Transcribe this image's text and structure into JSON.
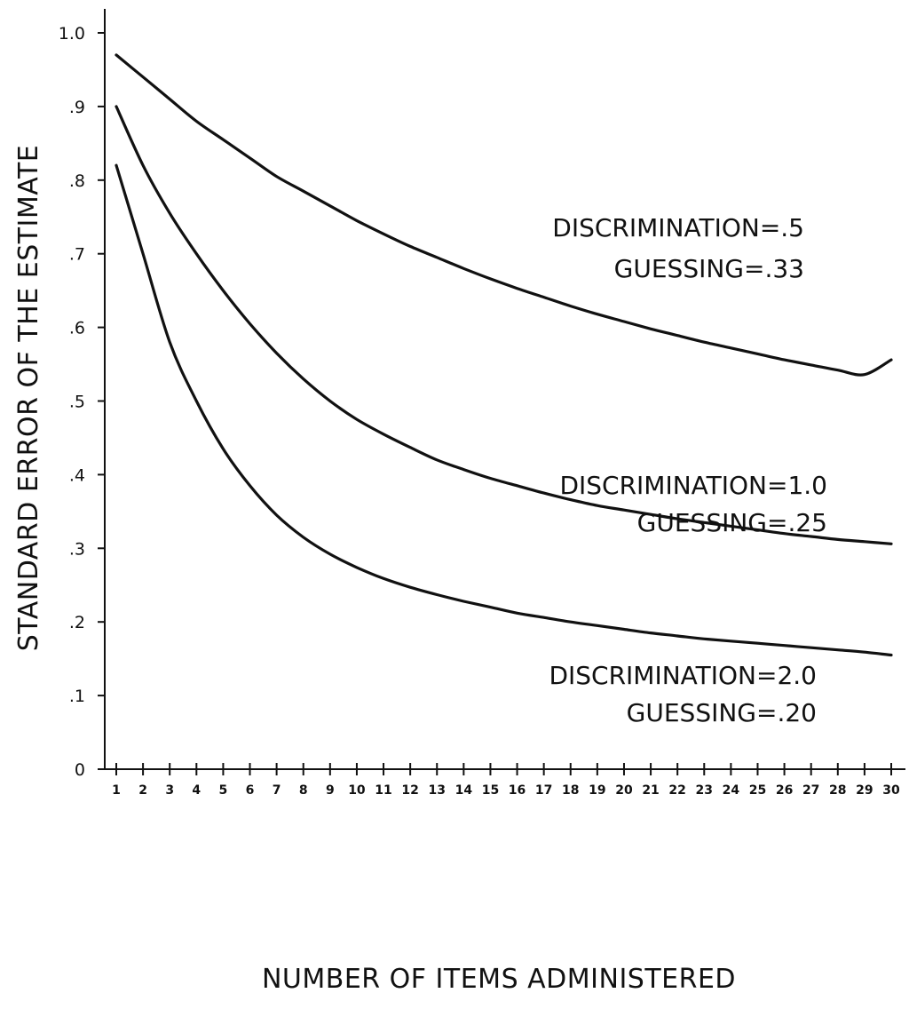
{
  "chart_data": {
    "type": "line",
    "title": "",
    "xlabel": "NUMBER OF ITEMS ADMINISTERED",
    "ylabel": "STANDARD ERROR OF THE ESTIMATE",
    "xlim": [
      1,
      30
    ],
    "ylim": [
      0,
      1.0
    ],
    "grid": false,
    "x_ticks": [
      1,
      2,
      3,
      4,
      5,
      6,
      7,
      8,
      9,
      10,
      11,
      12,
      13,
      14,
      15,
      16,
      17,
      18,
      19,
      20,
      21,
      22,
      23,
      24,
      25,
      26,
      27,
      28,
      29,
      30
    ],
    "x_tick_labels": [
      "1",
      "2",
      "3",
      "4",
      "5",
      "6",
      "7",
      "8",
      "9",
      "10",
      "11",
      "12",
      "13",
      "14",
      "15",
      "16",
      "17",
      "18",
      "19",
      "20",
      "21",
      "22",
      "23",
      "24",
      "25",
      "26",
      "27",
      "28",
      "29",
      "30"
    ],
    "y_ticks": [
      0,
      0.1,
      0.2,
      0.3,
      0.4,
      0.5,
      0.6,
      0.7,
      0.8,
      0.9,
      1.0
    ],
    "y_tick_labels": [
      "0",
      ".1",
      ".2",
      ".3",
      ".4",
      ".5",
      ".6",
      ".7",
      ".8",
      ".9",
      "1.0"
    ],
    "x": [
      1,
      2,
      3,
      4,
      5,
      6,
      7,
      8,
      9,
      10,
      11,
      12,
      13,
      14,
      15,
      16,
      17,
      18,
      19,
      20,
      21,
      22,
      23,
      24,
      25,
      26,
      27,
      28,
      29,
      30
    ],
    "series": [
      {
        "values": [
          0.97,
          0.94,
          0.91,
          0.88,
          0.855,
          0.83,
          0.805,
          0.785,
          0.765,
          0.745,
          0.727,
          0.71,
          0.695,
          0.68,
          0.666,
          0.653,
          0.641,
          0.629,
          0.618,
          0.608,
          0.598,
          0.589,
          0.58,
          0.572,
          0.564,
          0.556,
          0.549,
          0.542,
          0.536,
          0.556
        ]
      },
      {
        "values": [
          0.9,
          0.82,
          0.755,
          0.7,
          0.65,
          0.605,
          0.565,
          0.53,
          0.5,
          0.475,
          0.455,
          0.437,
          0.42,
          0.407,
          0.395,
          0.385,
          0.375,
          0.366,
          0.358,
          0.352,
          0.346,
          0.34,
          0.335,
          0.33,
          0.325,
          0.32,
          0.316,
          0.312,
          0.309,
          0.306
        ]
      },
      {
        "values": [
          0.82,
          0.7,
          0.58,
          0.5,
          0.435,
          0.385,
          0.345,
          0.315,
          0.292,
          0.274,
          0.259,
          0.247,
          0.237,
          0.228,
          0.22,
          0.212,
          0.206,
          0.2,
          0.195,
          0.19,
          0.185,
          0.181,
          0.177,
          0.174,
          0.171,
          0.168,
          0.165,
          0.162,
          0.159,
          0.155
        ]
      }
    ],
    "annotations": [
      {
        "lines": [
          "DISCRIMINATION=.5",
          "GUESSING=.33"
        ]
      },
      {
        "lines": [
          "DISCRIMINATION=1.0",
          "GUESSING=.25"
        ]
      },
      {
        "lines": [
          "DISCRIMINATION=2.0",
          "GUESSING=.20"
        ]
      }
    ]
  }
}
